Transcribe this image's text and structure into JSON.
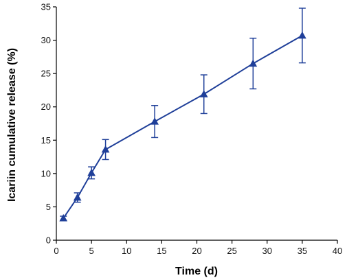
{
  "chart_data": {
    "type": "line",
    "title": "",
    "xlabel": "Time (d)",
    "ylabel": "Icariin cumulative release (%)",
    "xlim": [
      0,
      40
    ],
    "ylim": [
      0,
      35
    ],
    "x_ticks": [
      0,
      5,
      10,
      15,
      20,
      25,
      30,
      35,
      40
    ],
    "y_ticks": [
      0,
      5,
      10,
      15,
      20,
      25,
      30,
      35
    ],
    "grid": false,
    "marker": "triangle",
    "color": "#1f3f99",
    "series": [
      {
        "x": [
          1,
          3,
          5,
          7,
          14,
          21,
          28,
          35
        ],
        "y": [
          3.3,
          6.4,
          10.1,
          13.6,
          17.8,
          21.9,
          26.5,
          30.7
        ],
        "error": [
          0.3,
          0.7,
          0.9,
          1.5,
          2.4,
          2.9,
          3.8,
          4.1
        ]
      }
    ]
  }
}
